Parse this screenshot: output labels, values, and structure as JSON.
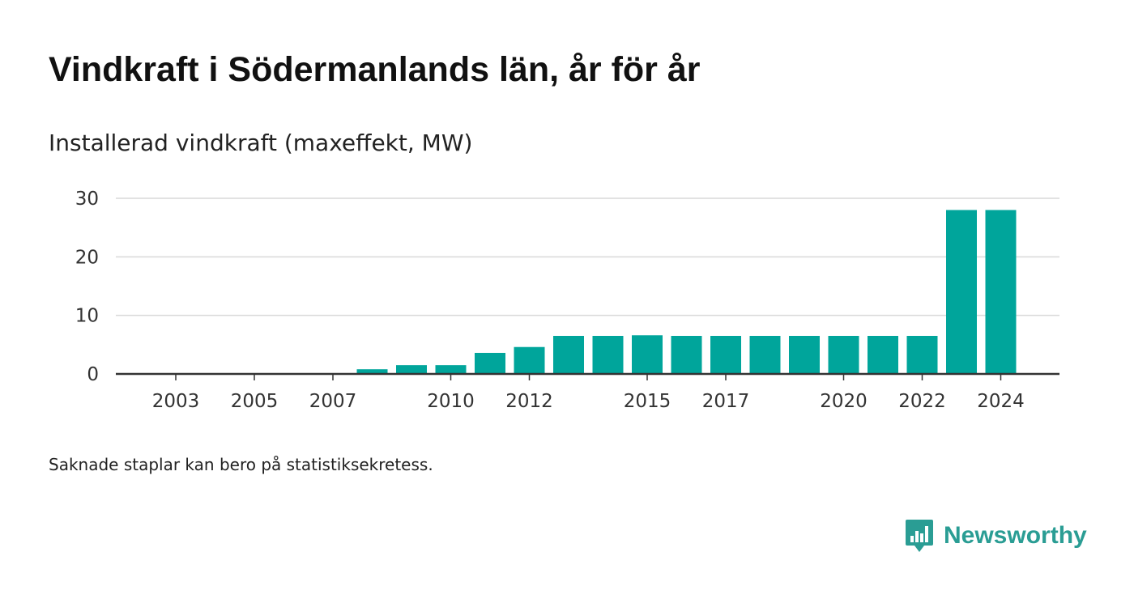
{
  "chart_data": {
    "type": "bar",
    "title": "Vindkraft i Södermanlands län, år för år",
    "subtitle": "Installerad vindkraft (maxeffekt, MW)",
    "categories": [
      "2003",
      "2004",
      "2005",
      "2006",
      "2007",
      "2008",
      "2009",
      "2010",
      "2011",
      "2012",
      "2013",
      "2014",
      "2015",
      "2016",
      "2017",
      "2018",
      "2019",
      "2020",
      "2021",
      "2022",
      "2023",
      "2024"
    ],
    "values": [
      0,
      0,
      0,
      0,
      0,
      0.8,
      1.5,
      1.5,
      3.6,
      4.6,
      6.5,
      6.5,
      6.6,
      6.5,
      6.5,
      6.5,
      6.5,
      6.5,
      6.5,
      6.5,
      28,
      28
    ],
    "x_tick_labels": [
      "2003",
      "2005",
      "2007",
      "2010",
      "2012",
      "2015",
      "2017",
      "2020",
      "2022",
      "2024"
    ],
    "y_ticks": [
      0,
      10,
      20,
      30
    ],
    "ylim": [
      0,
      30
    ],
    "xlabel": "",
    "ylabel": "",
    "grid": true,
    "bar_color": "#00a59b"
  },
  "footnote": "Saknade staplar kan bero på statistiksekretess.",
  "brand": {
    "name": "Newsworthy",
    "icon": "newsworthy-logo-icon",
    "color": "#2a9d94"
  }
}
